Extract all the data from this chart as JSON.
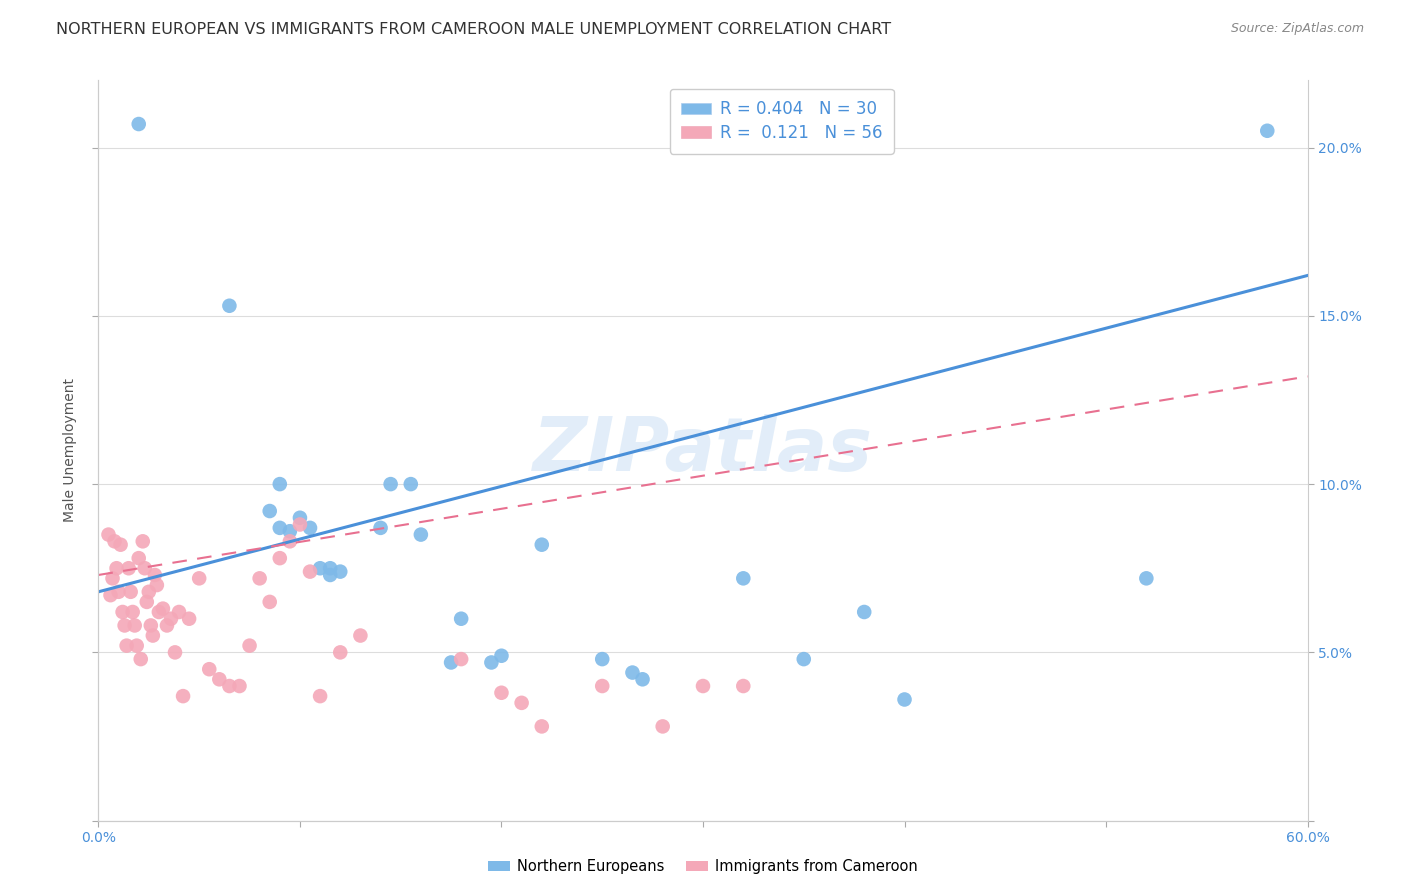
{
  "title": "NORTHERN EUROPEAN VS IMMIGRANTS FROM CAMEROON MALE UNEMPLOYMENT CORRELATION CHART",
  "source": "Source: ZipAtlas.com",
  "ylabel": "Male Unemployment",
  "watermark": "ZIPatlas",
  "xlim": [
    0.0,
    0.6
  ],
  "ylim": [
    0.0,
    0.22
  ],
  "legend1_label": "Northern Europeans",
  "legend2_label": "Immigrants from Cameroon",
  "R1": 0.404,
  "N1": 30,
  "R2": 0.121,
  "N2": 56,
  "color1": "#7eb9e8",
  "color2": "#f4a8b8",
  "line1_color": "#4a90d9",
  "line2_color": "#e87090",
  "line1_x": [
    0.0,
    0.6
  ],
  "line1_y": [
    0.068,
    0.162
  ],
  "line2_x": [
    0.0,
    0.6
  ],
  "line2_y": [
    0.073,
    0.132
  ],
  "scatter1_x": [
    0.02,
    0.065,
    0.085,
    0.09,
    0.09,
    0.095,
    0.1,
    0.105,
    0.11,
    0.115,
    0.115,
    0.12,
    0.14,
    0.145,
    0.155,
    0.16,
    0.175,
    0.18,
    0.195,
    0.2,
    0.22,
    0.25,
    0.265,
    0.27,
    0.32,
    0.35,
    0.38,
    0.4,
    0.52,
    0.58
  ],
  "scatter1_y": [
    0.207,
    0.153,
    0.092,
    0.1,
    0.087,
    0.086,
    0.09,
    0.087,
    0.075,
    0.075,
    0.073,
    0.074,
    0.087,
    0.1,
    0.1,
    0.085,
    0.047,
    0.06,
    0.047,
    0.049,
    0.082,
    0.048,
    0.044,
    0.042,
    0.072,
    0.048,
    0.062,
    0.036,
    0.072,
    0.205
  ],
  "scatter2_x": [
    0.005,
    0.006,
    0.007,
    0.008,
    0.009,
    0.01,
    0.011,
    0.012,
    0.013,
    0.014,
    0.015,
    0.016,
    0.017,
    0.018,
    0.019,
    0.02,
    0.021,
    0.022,
    0.023,
    0.024,
    0.025,
    0.026,
    0.027,
    0.028,
    0.029,
    0.03,
    0.032,
    0.034,
    0.036,
    0.038,
    0.04,
    0.042,
    0.045,
    0.05,
    0.055,
    0.06,
    0.065,
    0.07,
    0.075,
    0.08,
    0.085,
    0.09,
    0.095,
    0.1,
    0.105,
    0.11,
    0.12,
    0.13,
    0.18,
    0.2,
    0.21,
    0.22,
    0.25,
    0.28,
    0.3,
    0.32
  ],
  "scatter2_y": [
    0.085,
    0.067,
    0.072,
    0.083,
    0.075,
    0.068,
    0.082,
    0.062,
    0.058,
    0.052,
    0.075,
    0.068,
    0.062,
    0.058,
    0.052,
    0.078,
    0.048,
    0.083,
    0.075,
    0.065,
    0.068,
    0.058,
    0.055,
    0.073,
    0.07,
    0.062,
    0.063,
    0.058,
    0.06,
    0.05,
    0.062,
    0.037,
    0.06,
    0.072,
    0.045,
    0.042,
    0.04,
    0.04,
    0.052,
    0.072,
    0.065,
    0.078,
    0.083,
    0.088,
    0.074,
    0.037,
    0.05,
    0.055,
    0.048,
    0.038,
    0.035,
    0.028,
    0.04,
    0.028,
    0.04,
    0.04
  ],
  "background_color": "#ffffff",
  "grid_color": "#dddddd",
  "title_fontsize": 11.5,
  "axis_label_fontsize": 10,
  "tick_fontsize": 10,
  "marker_size": 110
}
